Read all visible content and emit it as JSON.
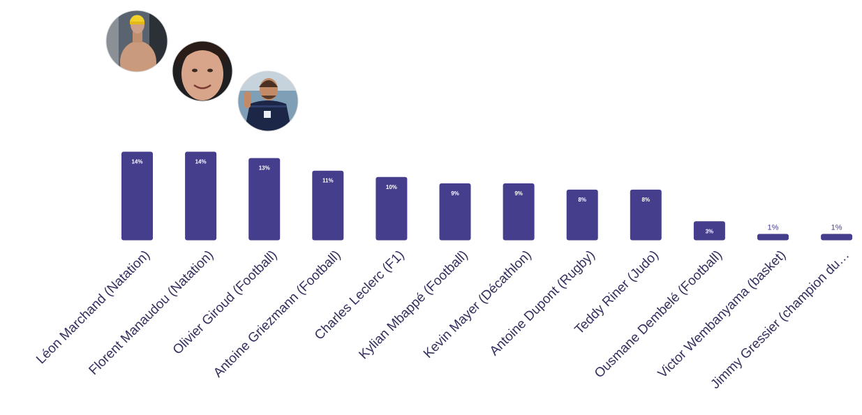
{
  "colors": {
    "bar": "#443e8d",
    "label": "#34305e",
    "value_inside": "#ffffff",
    "value_outside": "#443e8d"
  },
  "chart_data": {
    "type": "bar",
    "title": "",
    "xlabel": "",
    "ylabel": "",
    "ylim": [
      0,
      14
    ],
    "grid": false,
    "legend": "none",
    "categories": [
      "Léon Marchand (Natation)",
      "Florent Manaudou (Natation)",
      "Olivier Giroud (Football)",
      "Antoine Griezmann (Football)",
      "Charles Leclerc (F1)",
      "Kylian Mbappé (Football)",
      "Kevin Mayer (Décathlon)",
      "Antoine Dupont (Rugby)",
      "Teddy Riner (Judo)",
      "Ousmane Dembelé (Football)",
      "Victor Wembanyama (basket)",
      "Jimmy Gressier (champion du…"
    ],
    "values": [
      14,
      14,
      13,
      11,
      10,
      9,
      9,
      8,
      8,
      3,
      1,
      1
    ],
    "value_labels": [
      "14%",
      "14%",
      "13%",
      "11%",
      "10%",
      "9%",
      "9%",
      "8%",
      "8%",
      "3%",
      "1%",
      "1%"
    ],
    "photos": [
      {
        "category_index": 0,
        "icon": "swimmer-photo-icon"
      },
      {
        "category_index": 1,
        "icon": "portrait-photo-icon"
      },
      {
        "category_index": 2,
        "icon": "football-player-photo-icon"
      }
    ]
  }
}
